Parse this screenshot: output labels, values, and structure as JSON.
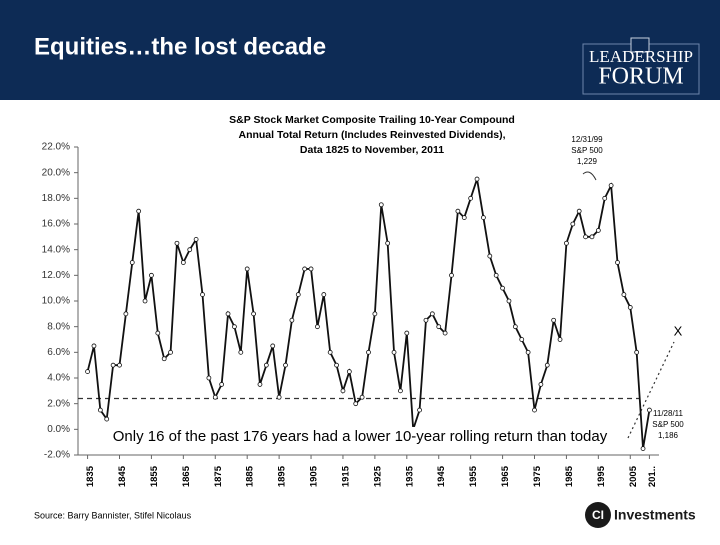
{
  "header": {
    "title": "Equities…the lost decade",
    "logo_line1": "LEADERSHIP",
    "logo_line2": "FORUM"
  },
  "chart_data": {
    "type": "line",
    "title_lines": [
      "S&P Stock Market Composite Trailing 10-Year Compound",
      "Annual Total Return (Includes Reinvested Dividends),",
      "Data 1825 to November, 2011"
    ],
    "x": [
      1835,
      1837,
      1839,
      1841,
      1843,
      1845,
      1847,
      1849,
      1851,
      1853,
      1855,
      1857,
      1859,
      1861,
      1863,
      1865,
      1867,
      1869,
      1871,
      1873,
      1875,
      1877,
      1879,
      1881,
      1883,
      1885,
      1887,
      1889,
      1891,
      1893,
      1895,
      1897,
      1899,
      1901,
      1903,
      1905,
      1907,
      1909,
      1911,
      1913,
      1915,
      1917,
      1919,
      1921,
      1923,
      1925,
      1927,
      1929,
      1931,
      1933,
      1935,
      1937,
      1939,
      1941,
      1943,
      1945,
      1947,
      1949,
      1951,
      1953,
      1955,
      1957,
      1959,
      1961,
      1963,
      1965,
      1967,
      1969,
      1971,
      1973,
      1975,
      1977,
      1979,
      1981,
      1983,
      1985,
      1987,
      1989,
      1991,
      1993,
      1995,
      1997,
      1999,
      2001,
      2003,
      2005,
      2007,
      2009,
      2011
    ],
    "series": [
      {
        "name": "Trailing 10-year return",
        "color": "#111111",
        "values": [
          4.5,
          6.5,
          1.5,
          0.8,
          5,
          5,
          9,
          13,
          17,
          10,
          12,
          7.5,
          5.5,
          6,
          14.5,
          13,
          14,
          14.8,
          10.5,
          4,
          2.5,
          3.5,
          9,
          8,
          6,
          12.5,
          9,
          3.5,
          5,
          6.5,
          2.5,
          5,
          8.5,
          10.5,
          12.5,
          12.5,
          8,
          10.5,
          6,
          5,
          3,
          4.5,
          2,
          2.5,
          6,
          9,
          17.5,
          14.5,
          6,
          3,
          7.5,
          0,
          1.5,
          8.5,
          9,
          8,
          7.5,
          12,
          17,
          16.5,
          18,
          19.5,
          16.5,
          13.5,
          12,
          11,
          10,
          8,
          7,
          6,
          1.5,
          3.5,
          5,
          8.5,
          7,
          14.5,
          16,
          17,
          15,
          15,
          15.5,
          18,
          19,
          13,
          10.5,
          9.5,
          6,
          -1.5,
          1.5
        ]
      }
    ],
    "reference_line": 2.4,
    "xlim": [
      1832,
      2014
    ],
    "xticks": [
      1835,
      1845,
      1855,
      1865,
      1875,
      1885,
      1895,
      1905,
      1915,
      1925,
      1935,
      1945,
      1955,
      1965,
      1975,
      1985,
      1995,
      2005,
      {
        "value": 2011,
        "label": "201.."
      }
    ],
    "ylim": [
      -2,
      22
    ],
    "yticks": [
      {
        "value": 22,
        "label": "22.0%"
      },
      {
        "value": 20,
        "label": "20.0%"
      },
      {
        "value": 18,
        "label": "18.0%"
      },
      {
        "value": 16,
        "label": "16.0%"
      },
      {
        "value": 14,
        "label": "14.0%"
      },
      {
        "value": 12,
        "label": "12.0%"
      },
      {
        "value": 10,
        "label": "10.0%"
      },
      {
        "value": 8,
        "label": "8.0%"
      },
      {
        "value": 6,
        "label": "6.0%"
      },
      {
        "value": 4,
        "label": "4.0%"
      },
      {
        "value": 2,
        "label": "2.0%"
      },
      {
        "value": 0,
        "label": "0.0%"
      },
      {
        "value": -2,
        "label": "-2.0%"
      }
    ],
    "annotation_1999": [
      "12/31/99",
      "S&P 500",
      "1,229"
    ],
    "annotation_2011": [
      "11/28/11",
      "S&P 500",
      "1,186"
    ],
    "annotation_x": "X",
    "caption": "Only 16 of the past 176 years had a lower  10-year rolling return than today"
  },
  "source": "Source: Barry Bannister, Stifel Nicolaus",
  "footer_logo": {
    "mark": "CI",
    "text": "Investments"
  }
}
